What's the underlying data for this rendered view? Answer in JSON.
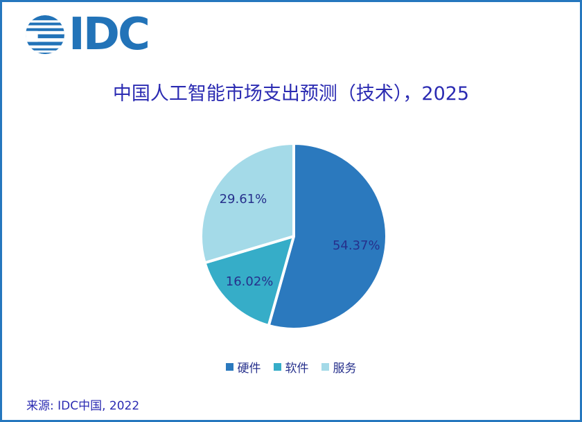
{
  "frame": {
    "border_color": "#2577BE",
    "background": "#FFFFFF"
  },
  "logo": {
    "brand": "IDC",
    "color": "#2273B8",
    "icon": "striped-globe-icon"
  },
  "title": {
    "text": "中国人工智能市场支出预测（技术），2025",
    "color": "#2B2BB2"
  },
  "chart_data": {
    "type": "pie",
    "title": "中国人工智能市场支出预测（技术），2025",
    "categories": [
      "硬件",
      "软件",
      "服务"
    ],
    "values": [
      54.37,
      16.02,
      29.61
    ],
    "data_labels": [
      "54.37%",
      "16.02%",
      "29.61%"
    ],
    "colors": [
      "#2B79BE",
      "#36ADC8",
      "#A4DAE8"
    ],
    "start_angle_deg": 0,
    "direction": "clockwise",
    "slice_border_color": "#FFFFFF",
    "label_color": "#26308C",
    "legend_position": "bottom"
  },
  "source": {
    "text": "来源: IDC中国, 2022",
    "color": "#2B2BB2"
  }
}
